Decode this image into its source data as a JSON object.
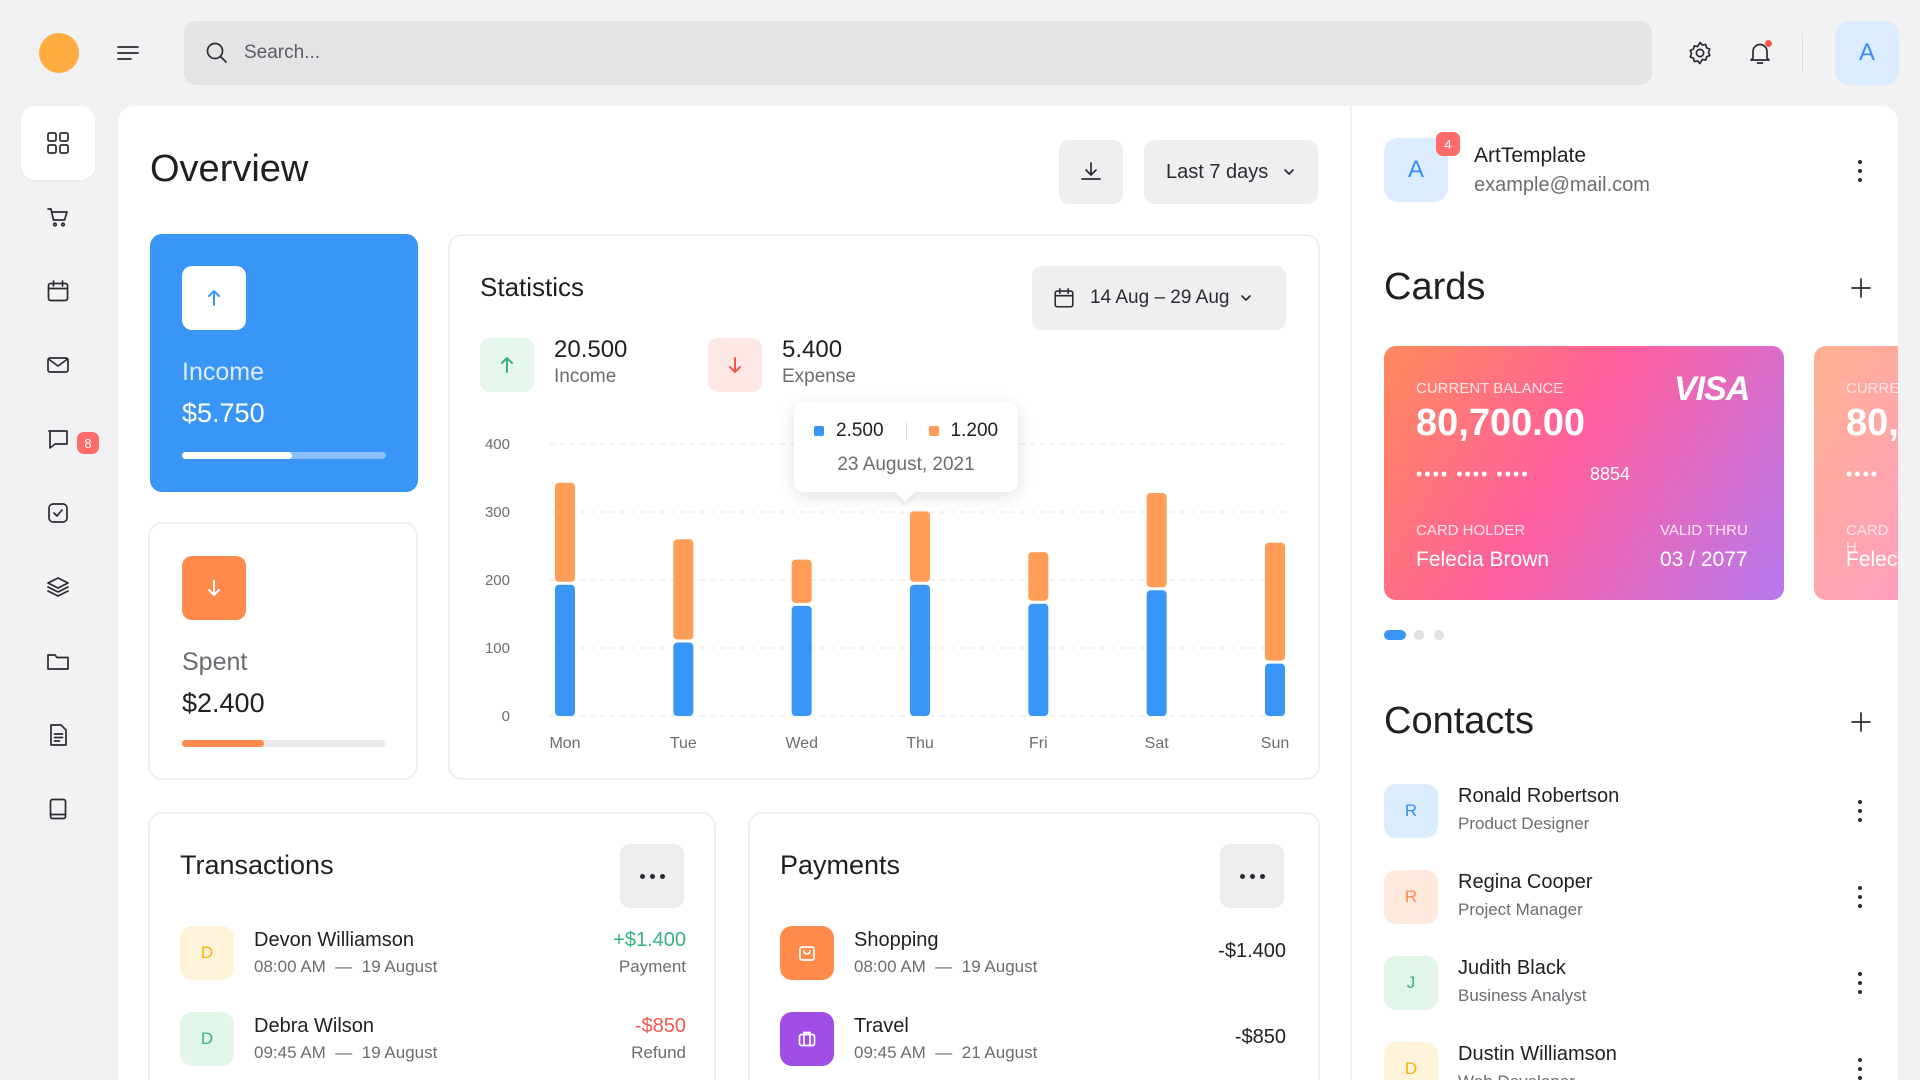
{
  "search": {
    "placeholder": "Search..."
  },
  "topbar": {
    "avatar_initial": "A"
  },
  "sidebar": {
    "items": [
      {
        "icon": "grid-icon",
        "active": true
      },
      {
        "icon": "cart-icon"
      },
      {
        "icon": "calendar-icon"
      },
      {
        "icon": "mail-icon",
        "badge": "8"
      },
      {
        "icon": "chat-icon"
      },
      {
        "icon": "check-square-icon"
      },
      {
        "icon": "layers-icon"
      },
      {
        "icon": "folder-icon"
      },
      {
        "icon": "document-icon"
      },
      {
        "icon": "book-icon"
      }
    ]
  },
  "overview": {
    "title": "Overview",
    "range_label": "Last 7 days"
  },
  "income_card": {
    "label": "Income",
    "value": "$5.750",
    "progress": 0.54,
    "color": "#3a96f6"
  },
  "spent_card": {
    "label": "Spent",
    "value": "$2.400",
    "progress": 0.4,
    "color": "#ff8a4c"
  },
  "statistics": {
    "title": "Statistics",
    "date_range": "14 Aug – 29 Aug",
    "income_value": "20.500",
    "income_label": "Income",
    "expense_value": "5.400",
    "expense_label": "Expense",
    "tooltip": {
      "income": "2.500",
      "expense": "1.200",
      "date": "23 August, 2021"
    }
  },
  "chart_data": {
    "type": "bar",
    "stacked": true,
    "categories": [
      "Mon",
      "Tue",
      "Wed",
      "Thu",
      "Fri",
      "Sat",
      "Sun"
    ],
    "series": [
      {
        "values": [
          193,
          108,
          162,
          193,
          165,
          185,
          77
        ],
        "color": "#3a96f6"
      },
      {
        "values": [
          150,
          152,
          68,
          108,
          76,
          143,
          178
        ],
        "color": "#ff9d57"
      }
    ],
    "ylim": [
      0,
      400
    ],
    "yticks": [
      0,
      100,
      200,
      300,
      400
    ],
    "grid": true
  },
  "transactions": {
    "title": "Transactions",
    "rows": [
      {
        "initial": "D",
        "name": "Devon Williamson",
        "time": "08:00 AM",
        "date": "19 August",
        "amount": "+$1.400",
        "type": "Payment",
        "amount_color": "#36b37e",
        "av_bg": "#fff4d9",
        "av_fg": "#f5b400"
      },
      {
        "initial": "D",
        "name": "Debra Wilson",
        "time": "09:45 AM",
        "date": "19 August",
        "amount": "-$850",
        "type": "Refund",
        "amount_color": "#f0584d",
        "av_bg": "#e2f6ea",
        "av_fg": "#36b37e"
      }
    ]
  },
  "payments": {
    "title": "Payments",
    "rows": [
      {
        "icon": "bag-icon",
        "name": "Shopping",
        "time": "08:00 AM",
        "date": "19 August",
        "amount": "-$1.400",
        "icon_bg": "#ff8a4c"
      },
      {
        "icon": "briefcase-icon",
        "name": "Travel",
        "time": "09:45 AM",
        "date": "21 August",
        "amount": "-$850",
        "icon_bg": "#a04ee6"
      }
    ]
  },
  "profile": {
    "initial": "A",
    "badge": "4",
    "name": "ArtTemplate",
    "email": "example@mail.com"
  },
  "cards": {
    "title": "Cards",
    "card": {
      "balance_label": "CURRENT BALANCE",
      "balance": "80,700.00",
      "brand": "VISA",
      "masked": "•••• •••• ••••",
      "last4": "8854",
      "holder_label": "CARD HOLDER",
      "holder": "Felecia Brown",
      "valid_label": "VALID THRU",
      "valid": "03 / 2077"
    },
    "card2": {
      "balance_label": "CURRE",
      "balance": "80,",
      "masked": "••••",
      "holder_label": "CARD H",
      "holder": "Felec"
    }
  },
  "contacts": {
    "title": "Contacts",
    "rows": [
      {
        "initial": "R",
        "name": "Ronald Robertson",
        "role": "Product Designer",
        "bg": "#dcecff",
        "fg": "#3a8df5"
      },
      {
        "initial": "R",
        "name": "Regina Cooper",
        "role": "Project Manager",
        "bg": "#ffe9dc",
        "fg": "#ff8a4c"
      },
      {
        "initial": "J",
        "name": "Judith Black",
        "role": "Business Analyst",
        "bg": "#e2f6ea",
        "fg": "#36b37e"
      },
      {
        "initial": "D",
        "name": "Dustin Williamson",
        "role": "Web Developer",
        "bg": "#fff4d9",
        "fg": "#f5b400"
      }
    ]
  }
}
